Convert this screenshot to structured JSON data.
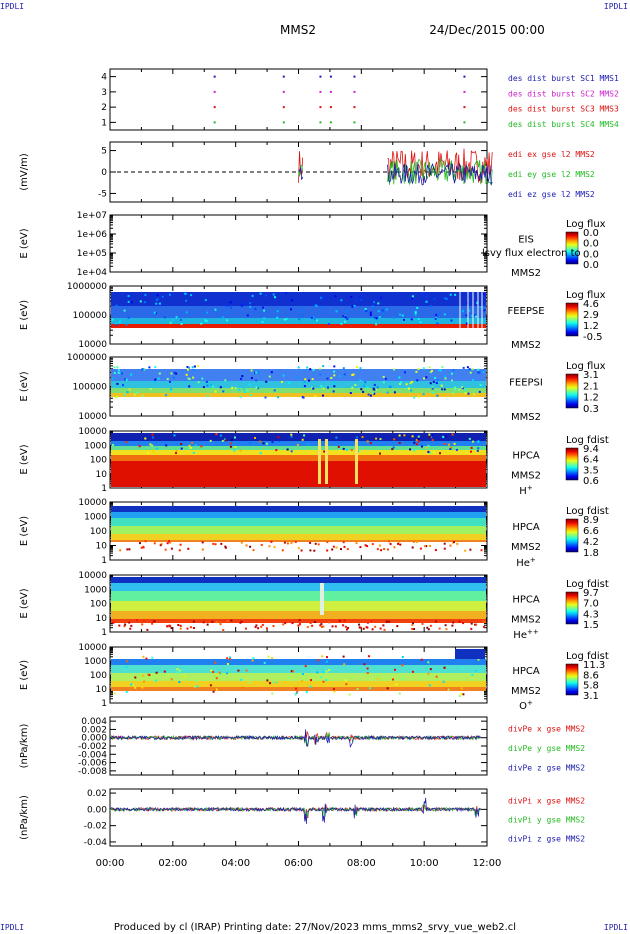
{
  "header": {
    "spacecraft": "MMS2",
    "date": "24/Dec/2015 00:00"
  },
  "corners": {
    "tl": "IPDLI",
    "tr": "IPDLI",
    "bl": "IPDLI",
    "br": "IPDLI"
  },
  "footer": {
    "text": "Produced by cl (IRAP)   Printing date: 27/Nov/2023   mms_mms2_srvy_vue_web2.cl"
  },
  "colors": {
    "blue": "#1b1bb0",
    "magenta": "#cc22cc",
    "red": "#dd1111",
    "green": "#22bb22"
  },
  "chart_data": [
    {
      "type": "scatter",
      "panel": "burst",
      "ylim": [
        0.5,
        4.5
      ],
      "yticks": [
        "1",
        "2",
        "3",
        "4"
      ],
      "series": [
        {
          "name": "des dist burst SC1 MMS1",
          "color": "#1b1bb0",
          "x": [
            "03:18",
            "05:30",
            "06:40",
            "07:00",
            "07:45",
            "11:15"
          ],
          "y": [
            4,
            4,
            4,
            4,
            4,
            4
          ]
        },
        {
          "name": "des dist burst SC2 MMS2",
          "color": "#cc22cc",
          "x": [
            "03:18",
            "05:30",
            "06:40",
            "07:00",
            "07:45",
            "11:15"
          ],
          "y": [
            3,
            3,
            3,
            3,
            3,
            3
          ]
        },
        {
          "name": "des dist burst SC3 MMS3",
          "color": "#dd1111",
          "x": [
            "03:18",
            "05:30",
            "06:40",
            "07:00",
            "07:45",
            "11:15"
          ],
          "y": [
            2,
            2,
            2,
            2,
            2,
            2
          ]
        },
        {
          "name": "des dist burst SC4 MMS4",
          "color": "#22bb22",
          "x": [
            "03:18",
            "05:30",
            "06:40",
            "07:00",
            "07:45",
            "11:15"
          ],
          "y": [
            1,
            1,
            1,
            1,
            1,
            1
          ]
        }
      ]
    },
    {
      "type": "line",
      "panel": "edi",
      "ylabel": "(mV/m)",
      "ylim": [
        -7,
        7
      ],
      "yticks": [
        "-5",
        "0",
        "5"
      ],
      "series": [
        {
          "name": "edi ex gse l2 MMS2",
          "color": "#dd1111"
        },
        {
          "name": "edi ey gse l2 MMS2",
          "color": "#22bb22"
        },
        {
          "name": "edi ez gse l2 MMS2",
          "color": "#1b1bb0"
        }
      ]
    },
    {
      "type": "heatmap",
      "panel": "eis",
      "ylabel": "E (eV)",
      "log": true,
      "yticks": [
        "1e+04",
        "1e+05",
        "1e+06",
        "1e+07"
      ],
      "labels": [
        "EIS",
        "MMS2"
      ],
      "overlay_text": "flux electron to",
      "overlay_prefix": "lsvy",
      "colorbar": {
        "title": "Log flux",
        "ticks": [
          "0.0",
          "0.0",
          "0.0",
          "0.0"
        ]
      }
    },
    {
      "type": "heatmap",
      "panel": "feepse",
      "ylabel": "E (eV)",
      "log": true,
      "yticks": [
        "10000",
        "100000",
        "1000000"
      ],
      "labels": [
        "FEEPSE",
        "MMS2"
      ],
      "colorbar": {
        "title": "Log flux",
        "ticks": [
          "4.6",
          "2.9",
          "1.2",
          "-0.5"
        ]
      }
    },
    {
      "type": "heatmap",
      "panel": "feepsi",
      "ylabel": "E (eV)",
      "log": true,
      "yticks": [
        "10000",
        "100000",
        "1000000"
      ],
      "labels": [
        "FEEPSI",
        "MMS2"
      ],
      "colorbar": {
        "title": "Log flux",
        "ticks": [
          "3.1",
          "2.1",
          "1.2",
          "0.3"
        ]
      }
    },
    {
      "type": "heatmap",
      "panel": "hpca_h",
      "ylabel": "E (eV)",
      "log": true,
      "yticks": [
        "1",
        "10",
        "100",
        "1000",
        "10000"
      ],
      "labels": [
        "HPCA",
        "MMS2"
      ],
      "species": "H",
      "charge": "+",
      "colorbar": {
        "title": "Log fdist",
        "ticks": [
          "9.4",
          "6.4",
          "3.5",
          "0.6"
        ]
      }
    },
    {
      "type": "heatmap",
      "panel": "hpca_he",
      "ylabel": "E (eV)",
      "log": true,
      "yticks": [
        "1",
        "10",
        "100",
        "1000",
        "10000"
      ],
      "labels": [
        "HPCA",
        "MMS2"
      ],
      "species": "He",
      "charge": "+",
      "colorbar": {
        "title": "Log fdist",
        "ticks": [
          "8.9",
          "6.6",
          "4.2",
          "1.8"
        ]
      }
    },
    {
      "type": "heatmap",
      "panel": "hpca_hepp",
      "ylabel": "E (eV)",
      "log": true,
      "yticks": [
        "1",
        "10",
        "100",
        "1000",
        "10000"
      ],
      "labels": [
        "HPCA",
        "MMS2"
      ],
      "species": "He",
      "charge": "++",
      "colorbar": {
        "title": "Log fdist",
        "ticks": [
          "9.7",
          "7.0",
          "4.3",
          "1.5"
        ]
      }
    },
    {
      "type": "heatmap",
      "panel": "hpca_o",
      "ylabel": "E (eV)",
      "log": true,
      "yticks": [
        "1",
        "10",
        "100",
        "1000",
        "10000"
      ],
      "labels": [
        "HPCA",
        "MMS2"
      ],
      "species": "O",
      "charge": "+",
      "colorbar": {
        "title": "Log fdist",
        "ticks": [
          "11.3",
          "8.6",
          "5.8",
          "3.1"
        ]
      }
    },
    {
      "type": "line",
      "panel": "divpe",
      "ylabel": "(nPa/km)",
      "ylim": [
        -0.009,
        0.005
      ],
      "yticks": [
        "-0.008",
        "-0.006",
        "-0.004",
        "-0.002",
        "0.000",
        "0.002",
        "0.004"
      ],
      "series": [
        {
          "name": "divPe x gse MMS2",
          "color": "#dd1111"
        },
        {
          "name": "divPe y gse MMS2",
          "color": "#22bb22"
        },
        {
          "name": "divPe z gse MMS2",
          "color": "#1b1bb0"
        }
      ]
    },
    {
      "type": "line",
      "panel": "divpi",
      "ylabel": "(nPa/km)",
      "ylim": [
        -0.045,
        0.025
      ],
      "yticks": [
        "-0.04",
        "-0.02",
        "0.00",
        "0.02"
      ],
      "series": [
        {
          "name": "divPi x gse MMS2",
          "color": "#dd1111"
        },
        {
          "name": "divPi y gse MMS2",
          "color": "#22bb22"
        },
        {
          "name": "divPi z gse MMS2",
          "color": "#1b1bb0"
        }
      ]
    }
  ],
  "xaxis": {
    "ticks": [
      "00:00",
      "02:00",
      "04:00",
      "06:00",
      "08:00",
      "10:00",
      "12:00"
    ],
    "xlim": [
      "00:00",
      "12:00"
    ]
  }
}
